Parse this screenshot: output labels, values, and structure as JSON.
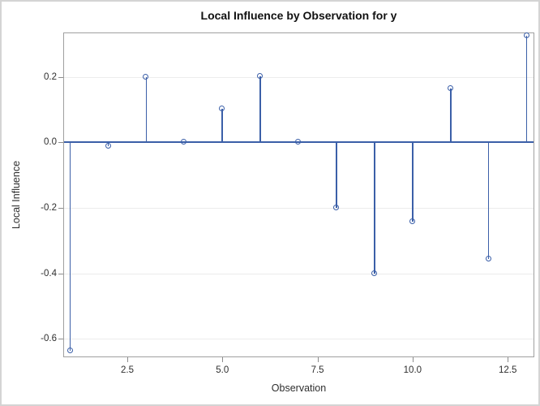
{
  "window": {
    "background": "#ffffff",
    "outer_border_color": "#d4d4d4"
  },
  "chart_data": {
    "type": "scatter",
    "subtype": "needle-plot",
    "title": "Local Influence by Observation for y",
    "xlabel": "Observation",
    "ylabel": "Local Influence",
    "x": [
      1,
      2,
      3,
      4,
      5,
      6,
      7,
      8,
      9,
      10,
      11,
      12,
      13
    ],
    "values": [
      -0.635,
      -0.012,
      0.2,
      0.002,
      0.103,
      0.202,
      0.002,
      -0.199,
      -0.4,
      -0.243,
      0.165,
      -0.355,
      0.325
    ],
    "baseline": 0,
    "xlim": [
      0.816,
      13.2
    ],
    "ylim": [
      -0.656,
      0.336
    ],
    "x_ticks": [
      2.5,
      5,
      7.5,
      10,
      12.5
    ],
    "x_tick_labels": [
      "2.5",
      "5.0",
      "7.5",
      "10.0",
      "12.5"
    ],
    "y_ticks": [
      0.2,
      0,
      -0.2,
      -0.4,
      -0.6
    ],
    "y_tick_labels": [
      "0.2",
      "0.0",
      "-0.2",
      "-0.4",
      "-0.6"
    ],
    "grid": true,
    "legend_position": "none",
    "marker_shape": "open-circle",
    "colors": {
      "needle": "#3b5fa8",
      "marker": "#3b5fa8",
      "baseline": "#3b5fa8",
      "gridline": "#ececec",
      "frame": "#a0a0a0",
      "tick": "#8c8c8c",
      "tick_text": "#2e2e2e",
      "title_text": "#111111"
    }
  }
}
